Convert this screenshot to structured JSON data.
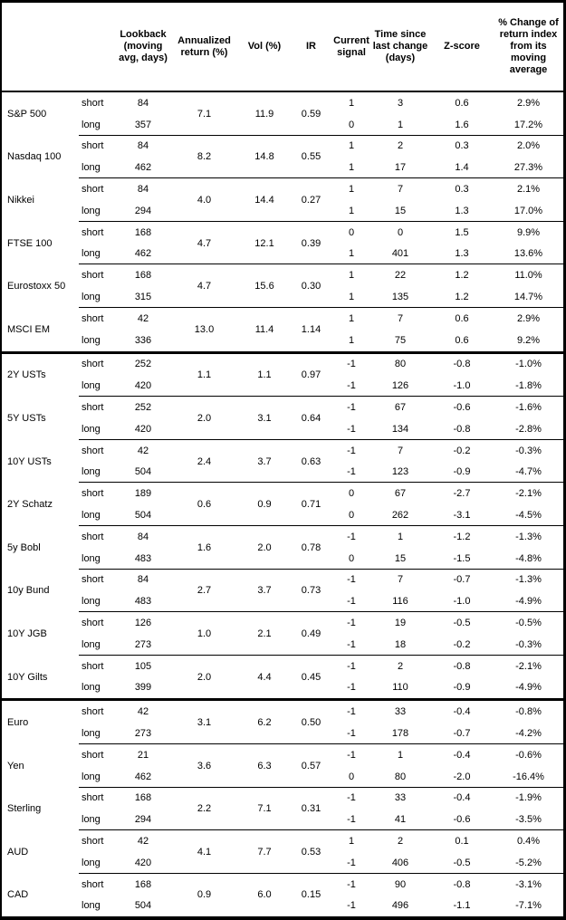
{
  "table": {
    "leg_labels": [
      "short",
      "long"
    ],
    "columns": [
      {
        "key": "instrument",
        "label": ""
      },
      {
        "key": "leg",
        "label": ""
      },
      {
        "key": "lookback",
        "label": "Lookback (moving avg, days)"
      },
      {
        "key": "ann_return",
        "label": "Annualized return (%)"
      },
      {
        "key": "vol",
        "label": "Vol (%)"
      },
      {
        "key": "ir",
        "label": "IR"
      },
      {
        "key": "signal",
        "label": "Current signal"
      },
      {
        "key": "time_since",
        "label": "Time since last change (days)"
      },
      {
        "key": "zscore",
        "label": "Z-score"
      },
      {
        "key": "pct_change",
        "label": "% Change of return index from its moving average"
      }
    ],
    "sections": [
      {
        "name": "equities",
        "rows": [
          {
            "instrument": "S&P 500",
            "lookback": [
              84,
              357
            ],
            "ann_return": "7.1",
            "vol": "11.9",
            "ir": "0.59",
            "signal": [
              1,
              0
            ],
            "time_since": [
              3,
              1
            ],
            "zscore": [
              "0.6",
              "1.6"
            ],
            "pct_change": [
              "2.9%",
              "17.2%"
            ]
          },
          {
            "instrument": "Nasdaq 100",
            "lookback": [
              84,
              462
            ],
            "ann_return": "8.2",
            "vol": "14.8",
            "ir": "0.55",
            "signal": [
              1,
              1
            ],
            "time_since": [
              2,
              17
            ],
            "zscore": [
              "0.3",
              "1.4"
            ],
            "pct_change": [
              "2.0%",
              "27.3%"
            ]
          },
          {
            "instrument": "Nikkei",
            "lookback": [
              84,
              294
            ],
            "ann_return": "4.0",
            "vol": "14.4",
            "ir": "0.27",
            "signal": [
              1,
              1
            ],
            "time_since": [
              7,
              15
            ],
            "zscore": [
              "0.3",
              "1.3"
            ],
            "pct_change": [
              "2.1%",
              "17.0%"
            ]
          },
          {
            "instrument": "FTSE 100",
            "lookback": [
              168,
              462
            ],
            "ann_return": "4.7",
            "vol": "12.1",
            "ir": "0.39",
            "signal": [
              0,
              1
            ],
            "time_since": [
              0,
              401
            ],
            "zscore": [
              "1.5",
              "1.3"
            ],
            "pct_change": [
              "9.9%",
              "13.6%"
            ]
          },
          {
            "instrument": "Eurostoxx 50",
            "lookback": [
              168,
              315
            ],
            "ann_return": "4.7",
            "vol": "15.6",
            "ir": "0.30",
            "signal": [
              1,
              1
            ],
            "time_since": [
              22,
              135
            ],
            "zscore": [
              "1.2",
              "1.2"
            ],
            "pct_change": [
              "11.0%",
              "14.7%"
            ]
          },
          {
            "instrument": "MSCI EM",
            "lookback": [
              42,
              336
            ],
            "ann_return": "13.0",
            "vol": "11.4",
            "ir": "1.14",
            "signal": [
              1,
              1
            ],
            "time_since": [
              7,
              75
            ],
            "zscore": [
              "0.6",
              "0.6"
            ],
            "pct_change": [
              "2.9%",
              "9.2%"
            ]
          }
        ]
      },
      {
        "name": "bonds",
        "rows": [
          {
            "instrument": "2Y USTs",
            "lookback": [
              252,
              420
            ],
            "ann_return": "1.1",
            "vol": "1.1",
            "ir": "0.97",
            "signal": [
              -1,
              -1
            ],
            "time_since": [
              80,
              126
            ],
            "zscore": [
              "-0.8",
              "-1.0"
            ],
            "pct_change": [
              "-1.0%",
              "-1.8%"
            ]
          },
          {
            "instrument": "5Y USTs",
            "lookback": [
              252,
              420
            ],
            "ann_return": "2.0",
            "vol": "3.1",
            "ir": "0.64",
            "signal": [
              -1,
              -1
            ],
            "time_since": [
              67,
              134
            ],
            "zscore": [
              "-0.6",
              "-0.8"
            ],
            "pct_change": [
              "-1.6%",
              "-2.8%"
            ]
          },
          {
            "instrument": "10Y USTs",
            "lookback": [
              42,
              504
            ],
            "ann_return": "2.4",
            "vol": "3.7",
            "ir": "0.63",
            "signal": [
              -1,
              -1
            ],
            "time_since": [
              7,
              123
            ],
            "zscore": [
              "-0.2",
              "-0.9"
            ],
            "pct_change": [
              "-0.3%",
              "-4.7%"
            ]
          },
          {
            "instrument": "2Y Schatz",
            "lookback": [
              189,
              504
            ],
            "ann_return": "0.6",
            "vol": "0.9",
            "ir": "0.71",
            "signal": [
              0,
              0
            ],
            "time_since": [
              67,
              262
            ],
            "zscore": [
              "-2.7",
              "-3.1"
            ],
            "pct_change": [
              "-2.1%",
              "-4.5%"
            ]
          },
          {
            "instrument": "5y Bobl",
            "lookback": [
              84,
              483
            ],
            "ann_return": "1.6",
            "vol": "2.0",
            "ir": "0.78",
            "signal": [
              -1,
              0
            ],
            "time_since": [
              1,
              15
            ],
            "zscore": [
              "-1.2",
              "-1.5"
            ],
            "pct_change": [
              "-1.3%",
              "-4.8%"
            ]
          },
          {
            "instrument": "10y Bund",
            "lookback": [
              84,
              483
            ],
            "ann_return": "2.7",
            "vol": "3.7",
            "ir": "0.73",
            "signal": [
              -1,
              -1
            ],
            "time_since": [
              7,
              116
            ],
            "zscore": [
              "-0.7",
              "-1.0"
            ],
            "pct_change": [
              "-1.3%",
              "-4.9%"
            ]
          },
          {
            "instrument": "10Y JGB",
            "lookback": [
              126,
              273
            ],
            "ann_return": "1.0",
            "vol": "2.1",
            "ir": "0.49",
            "signal": [
              -1,
              -1
            ],
            "time_since": [
              19,
              18
            ],
            "zscore": [
              "-0.5",
              "-0.2"
            ],
            "pct_change": [
              "-0.5%",
              "-0.3%"
            ]
          },
          {
            "instrument": "10Y Gilts",
            "lookback": [
              105,
              399
            ],
            "ann_return": "2.0",
            "vol": "4.4",
            "ir": "0.45",
            "signal": [
              -1,
              -1
            ],
            "time_since": [
              2,
              110
            ],
            "zscore": [
              "-0.8",
              "-0.9"
            ],
            "pct_change": [
              "-2.1%",
              "-4.9%"
            ]
          }
        ]
      },
      {
        "name": "fx",
        "rows": [
          {
            "instrument": "Euro",
            "lookback": [
              42,
              273
            ],
            "ann_return": "3.1",
            "vol": "6.2",
            "ir": "0.50",
            "signal": [
              -1,
              -1
            ],
            "time_since": [
              33,
              178
            ],
            "zscore": [
              "-0.4",
              "-0.7"
            ],
            "pct_change": [
              "-0.8%",
              "-4.2%"
            ]
          },
          {
            "instrument": "Yen",
            "lookback": [
              21,
              462
            ],
            "ann_return": "3.6",
            "vol": "6.3",
            "ir": "0.57",
            "signal": [
              -1,
              0
            ],
            "time_since": [
              1,
              80
            ],
            "zscore": [
              "-0.4",
              "-2.0"
            ],
            "pct_change": [
              "-0.6%",
              "-16.4%"
            ]
          },
          {
            "instrument": "Sterling",
            "lookback": [
              168,
              294
            ],
            "ann_return": "2.2",
            "vol": "7.1",
            "ir": "0.31",
            "signal": [
              -1,
              -1
            ],
            "time_since": [
              33,
              41
            ],
            "zscore": [
              "-0.4",
              "-0.6"
            ],
            "pct_change": [
              "-1.9%",
              "-3.5%"
            ]
          },
          {
            "instrument": "AUD",
            "lookback": [
              42,
              420
            ],
            "ann_return": "4.1",
            "vol": "7.7",
            "ir": "0.53",
            "signal": [
              1,
              -1
            ],
            "time_since": [
              2,
              406
            ],
            "zscore": [
              "0.1",
              "-0.5"
            ],
            "pct_change": [
              "0.4%",
              "-5.2%"
            ]
          },
          {
            "instrument": "CAD",
            "lookback": [
              168,
              504
            ],
            "ann_return": "0.9",
            "vol": "6.0",
            "ir": "0.15",
            "signal": [
              -1,
              -1
            ],
            "time_since": [
              90,
              496
            ],
            "zscore": [
              "-0.8",
              "-1.1"
            ],
            "pct_change": [
              "-3.1%",
              "-7.1%"
            ]
          }
        ]
      }
    ]
  }
}
